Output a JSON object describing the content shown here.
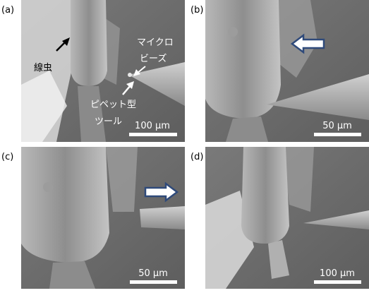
{
  "panels": [
    {
      "label": "(a)",
      "scale_bar": "100 µm",
      "annotations": [
        "線虫",
        "マイクロ",
        "ビーズ",
        "ピペット型",
        "ツール"
      ]
    },
    {
      "label": "(b)",
      "scale_bar": "50 µm"
    },
    {
      "label": "(c)",
      "scale_bar": "50 µm"
    },
    {
      "label": "(d)",
      "scale_bar": "100 µm"
    }
  ]
}
